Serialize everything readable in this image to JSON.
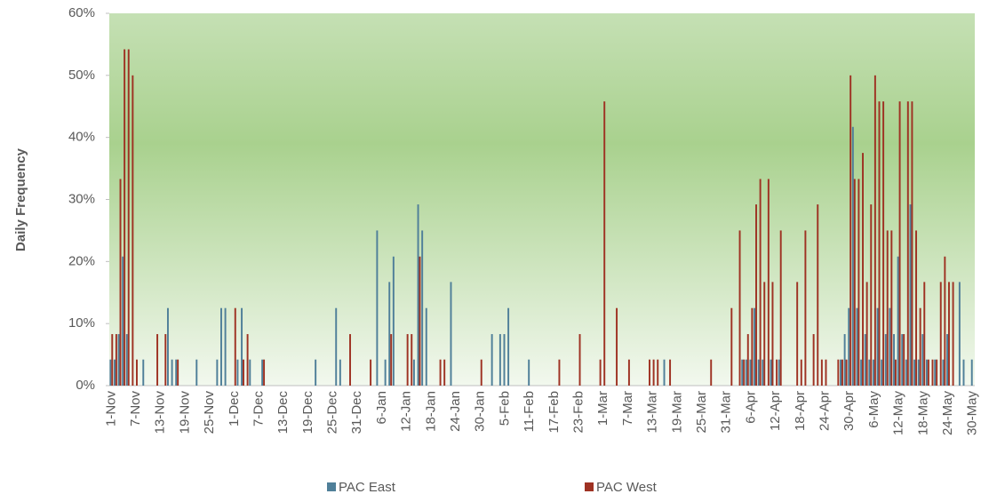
{
  "chart_data": {
    "type": "bar",
    "y_label": "Daily Frequency",
    "ylim": [
      0,
      60
    ],
    "yticks": [
      {
        "value": 0,
        "label": "0%"
      },
      {
        "value": 10,
        "label": "10%"
      },
      {
        "value": 20,
        "label": "20%"
      },
      {
        "value": 30,
        "label": "30%"
      },
      {
        "value": 40,
        "label": "40%"
      },
      {
        "value": 50,
        "label": "50%"
      },
      {
        "value": 60,
        "label": "60%"
      }
    ],
    "categories": [
      "1-Nov",
      null,
      null,
      null,
      null,
      null,
      "7-Nov",
      null,
      null,
      null,
      null,
      null,
      "13-Nov",
      null,
      null,
      null,
      null,
      null,
      "19-Nov",
      null,
      null,
      null,
      null,
      null,
      "25-Nov",
      null,
      null,
      null,
      null,
      null,
      "1-Dec",
      null,
      null,
      null,
      null,
      null,
      "7-Dec",
      null,
      null,
      null,
      null,
      null,
      "13-Dec",
      null,
      null,
      null,
      null,
      null,
      "19-Dec",
      null,
      null,
      null,
      null,
      null,
      "25-Dec",
      null,
      null,
      null,
      null,
      null,
      "31-Dec",
      null,
      null,
      null,
      null,
      null,
      "6-Jan",
      null,
      null,
      null,
      null,
      null,
      "12-Jan",
      null,
      null,
      null,
      null,
      null,
      "18-Jan",
      null,
      null,
      null,
      null,
      null,
      "24-Jan",
      null,
      null,
      null,
      null,
      null,
      "30-Jan",
      null,
      null,
      null,
      null,
      null,
      "5-Feb",
      null,
      null,
      null,
      null,
      null,
      "11-Feb",
      null,
      null,
      null,
      null,
      null,
      "17-Feb",
      null,
      null,
      null,
      null,
      null,
      "23-Feb",
      null,
      null,
      null,
      null,
      null,
      "1-Mar",
      null,
      null,
      null,
      null,
      null,
      "7-Mar",
      null,
      null,
      null,
      null,
      null,
      "13-Mar",
      null,
      null,
      null,
      null,
      null,
      "19-Mar",
      null,
      null,
      null,
      null,
      null,
      "25-Mar",
      null,
      null,
      null,
      null,
      null,
      "31-Mar",
      null,
      null,
      null,
      null,
      null,
      "6-Apr",
      null,
      null,
      null,
      null,
      null,
      "12-Apr",
      null,
      null,
      null,
      null,
      null,
      "18-Apr",
      null,
      null,
      null,
      null,
      null,
      "24-Apr",
      null,
      null,
      null,
      null,
      null,
      "30-Apr",
      null,
      null,
      null,
      null,
      null,
      "6-May",
      null,
      null,
      null,
      null,
      null,
      "12-May",
      null,
      null,
      null,
      null,
      null,
      "18-May",
      null,
      null,
      null,
      null,
      null,
      "24-May",
      null,
      null,
      null,
      null,
      null,
      "30-May"
    ],
    "series": [
      {
        "name": "PAC East",
        "color": "#4f7f99",
        "values": [
          4.2,
          4.2,
          8.3,
          20.8,
          8.3,
          0,
          0,
          0,
          4.2,
          0,
          0,
          0,
          0,
          0,
          12.5,
          4.2,
          4.2,
          0,
          0,
          0,
          0,
          4.2,
          0,
          0,
          0,
          0,
          4.2,
          12.5,
          12.5,
          0,
          0,
          4.2,
          12.5,
          0,
          4.2,
          0,
          0,
          4.2,
          0,
          0,
          0,
          0,
          0,
          0,
          0,
          0,
          0,
          0,
          0,
          0,
          4.2,
          0,
          0,
          0,
          0,
          12.5,
          4.2,
          0,
          0,
          0,
          0,
          0,
          0,
          0,
          0,
          25,
          0,
          4.2,
          16.7,
          20.8,
          0,
          0,
          0,
          0,
          4.2,
          29.2,
          25,
          12.5,
          0,
          0,
          0,
          0,
          0,
          16.7,
          0,
          0,
          0,
          0,
          0,
          0,
          0,
          0,
          0,
          8.3,
          0,
          8.3,
          8.3,
          12.5,
          0,
          0,
          0,
          0,
          4.2,
          0,
          0,
          0,
          0,
          0,
          0,
          0,
          0,
          0,
          0,
          0,
          0,
          0,
          0,
          0,
          0,
          0,
          0,
          0,
          0,
          0,
          0,
          0,
          0,
          0,
          0,
          0,
          0,
          0,
          0,
          0,
          0,
          4.2,
          0,
          0,
          0,
          0,
          0,
          0,
          0,
          0,
          0,
          0,
          0,
          0,
          0,
          0,
          0,
          0,
          0,
          0,
          4.2,
          4.2,
          4.2,
          12.5,
          4.2,
          4.2,
          0,
          4.2,
          0,
          4.2,
          0,
          0,
          0,
          0,
          0,
          0,
          0,
          0,
          0,
          0,
          0,
          0,
          0,
          0,
          4.2,
          8.3,
          12.5,
          41.7,
          12.5,
          4.2,
          8.3,
          4.2,
          4.2,
          12.5,
          4.2,
          8.3,
          12.5,
          8.3,
          20.8,
          8.3,
          4.2,
          29.2,
          4.2,
          4.2,
          8.3,
          4.2,
          0,
          4.2,
          0,
          4.2,
          8.3,
          0,
          0,
          16.7,
          4.2,
          0,
          4.2
        ]
      },
      {
        "name": "PAC West",
        "color": "#9e3223",
        "values": [
          8.3,
          8.3,
          33.3,
          54.2,
          54.2,
          50,
          4.2,
          0,
          0,
          0,
          0,
          8.3,
          0,
          8.3,
          0,
          0,
          4.2,
          0,
          0,
          0,
          0,
          0,
          0,
          0,
          0,
          0,
          0,
          0,
          0,
          0,
          12.5,
          0,
          4.2,
          8.3,
          0,
          0,
          0,
          4.2,
          0,
          0,
          0,
          0,
          0,
          0,
          0,
          0,
          0,
          0,
          0,
          0,
          0,
          0,
          0,
          0,
          0,
          0,
          0,
          0,
          8.3,
          0,
          0,
          0,
          0,
          4.2,
          0,
          0,
          0,
          0,
          8.3,
          0,
          0,
          0,
          8.3,
          8.3,
          0,
          20.8,
          0,
          0,
          0,
          0,
          4.2,
          4.2,
          0,
          0,
          0,
          0,
          0,
          0,
          0,
          0,
          4.2,
          0,
          0,
          0,
          0,
          0,
          0,
          0,
          0,
          0,
          0,
          0,
          0,
          0,
          0,
          0,
          0,
          0,
          0,
          4.2,
          0,
          0,
          0,
          0,
          8.3,
          0,
          0,
          0,
          0,
          4.2,
          45.8,
          0,
          0,
          12.5,
          0,
          0,
          4.2,
          0,
          0,
          0,
          0,
          4.2,
          4.2,
          4.2,
          0,
          0,
          4.2,
          0,
          0,
          0,
          0,
          0,
          0,
          0,
          0,
          0,
          4.2,
          0,
          0,
          0,
          0,
          12.5,
          0,
          25,
          4.2,
          8.3,
          12.5,
          29.2,
          33.3,
          16.7,
          33.3,
          16.7,
          4.2,
          25,
          0,
          0,
          0,
          16.7,
          4.2,
          25,
          0,
          8.3,
          29.2,
          4.2,
          4.2,
          0,
          0,
          4.2,
          4.2,
          4.2,
          50,
          33.3,
          33.3,
          37.5,
          16.7,
          29.2,
          50,
          45.8,
          45.8,
          25,
          25,
          4.2,
          45.8,
          8.3,
          45.8,
          45.8,
          25,
          12.5,
          16.7,
          4.2,
          4.2,
          4.2,
          16.7,
          20.8,
          16.7,
          16.7,
          0,
          0,
          0,
          0,
          0
        ]
      }
    ],
    "legend": "bottom"
  }
}
